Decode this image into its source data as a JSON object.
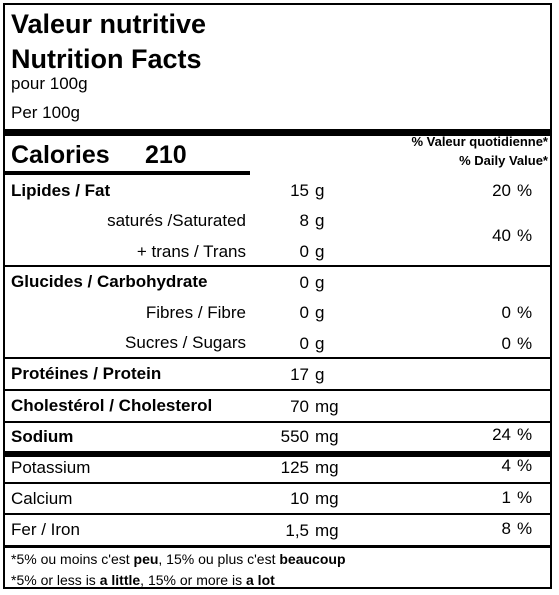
{
  "header": {
    "title_fr": "Valeur nutritive",
    "title_en": "Nutrition Facts",
    "per_fr": "pour 100g",
    "per_en": "Per 100g"
  },
  "calories": {
    "label": "Calories",
    "value": "210"
  },
  "dv_header": {
    "fr": "% Valeur quotidienne*",
    "en": "% Daily Value*"
  },
  "nutrients": {
    "fat": {
      "label": "Lipides / Fat",
      "amount": "15",
      "unit": "g",
      "dv": "20",
      "dv_unit": "%"
    },
    "saturated": {
      "label": "saturés /Saturated",
      "amount": "8",
      "unit": "g"
    },
    "trans": {
      "label": "+ trans / Trans",
      "amount": "0",
      "unit": "g"
    },
    "sat_trans_dv": {
      "dv": "40",
      "dv_unit": "%"
    },
    "carb": {
      "label": "Glucides / Carbohydrate",
      "amount": "0",
      "unit": "g"
    },
    "fibre": {
      "label": "Fibres / Fibre",
      "amount": "0",
      "unit": "g",
      "dv": "0",
      "dv_unit": "%"
    },
    "sugars": {
      "label": "Sucres / Sugars",
      "amount": "0",
      "unit": "g",
      "dv": "0",
      "dv_unit": "%"
    },
    "protein": {
      "label": "Protéines / Protein",
      "amount": "17",
      "unit": "g"
    },
    "cholesterol": {
      "label": "Cholestérol / Cholesterol",
      "amount": "70",
      "unit": "mg"
    },
    "sodium": {
      "label": "Sodium",
      "amount": "550",
      "unit": "mg",
      "dv": "24",
      "dv_unit": "%"
    }
  },
  "minerals": {
    "potassium": {
      "label": "Potassium",
      "amount": "125",
      "unit": "mg",
      "dv": "4",
      "dv_unit": "%"
    },
    "calcium": {
      "label": "Calcium",
      "amount": "10",
      "unit": "mg",
      "dv": "1",
      "dv_unit": "%"
    },
    "iron": {
      "label": "Fer / Iron",
      "amount": "1,5",
      "unit": "mg",
      "dv": "8",
      "dv_unit": "%"
    }
  },
  "footnote": {
    "fr_1": "*5% ou moins c'est ",
    "fr_2": "peu",
    "fr_3": ", 15% ou plus c'est ",
    "fr_4": "beaucoup",
    "en_1": "*5% or less is ",
    "en_2": "a little",
    "en_3": ", 15% or more is ",
    "en_4": "a lot"
  }
}
